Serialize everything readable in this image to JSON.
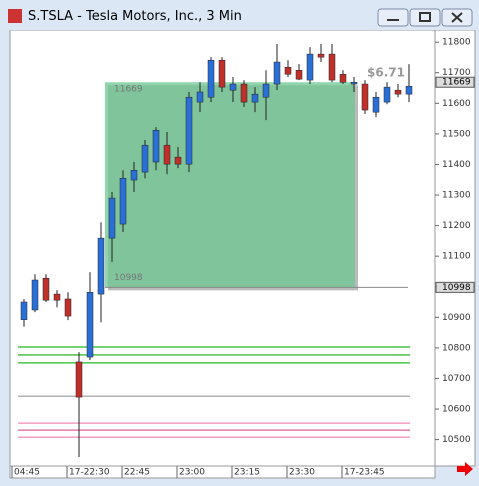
{
  "window": {
    "title": "S.TSLA - Tesla Motors, Inc., 3 Min"
  },
  "chart_data": {
    "type": "candlestick",
    "categories": [
      "04:45",
      null,
      null,
      null,
      null,
      "17-22:30",
      null,
      null,
      null,
      null,
      "22:45",
      null,
      null,
      null,
      null,
      "23:00",
      null,
      null,
      null,
      null,
      "23:15",
      null,
      null,
      null,
      null,
      "23:30",
      null,
      null,
      null,
      null,
      "17-23:45",
      null,
      null,
      null,
      null,
      null
    ],
    "open": [
      10892,
      10924,
      11028,
      10976,
      10960,
      10754,
      10770,
      10976,
      11159,
      11205,
      11349,
      11375,
      11408,
      11463,
      11424,
      11401,
      11604,
      11620,
      11741,
      11643,
      11663,
      11604,
      11620,
      11663,
      11718,
      11708,
      11676,
      11761,
      11761,
      11695,
      11663,
      11663,
      11571,
      11604,
      11643,
      11630
    ],
    "high": [
      10960,
      11041,
      11041,
      10989,
      10982,
      10786,
      11048,
      11211,
      11310,
      11381,
      11408,
      11480,
      11522,
      11506,
      11457,
      11637,
      11669,
      11751,
      11751,
      11686,
      11676,
      11653,
      11708,
      11794,
      11741,
      11728,
      11784,
      11794,
      11794,
      11708,
      11686,
      11676,
      11637,
      11669,
      11663,
      11728
    ],
    "low": [
      10869,
      10917,
      10950,
      10933,
      10891,
      10443,
      10760,
      10884,
      11081,
      11179,
      11310,
      11355,
      11381,
      11368,
      11388,
      11375,
      11571,
      11604,
      11637,
      11604,
      11588,
      11571,
      11545,
      11643,
      11686,
      11676,
      11663,
      11735,
      11669,
      11663,
      11637,
      11565,
      11555,
      11597,
      11620,
      11604
    ],
    "close": [
      10950,
      11022,
      10956,
      10956,
      10904,
      10639,
      10982,
      11159,
      11290,
      11355,
      11381,
      11463,
      11512,
      11401,
      11401,
      11620,
      11637,
      11741,
      11653,
      11663,
      11604,
      11630,
      11663,
      11735,
      11695,
      11679,
      11761,
      11751,
      11676,
      11669,
      11669,
      11578,
      11620,
      11653,
      11630,
      11656
    ],
    "up_color": "#2a6fd6",
    "down_color": "#c0302b",
    "ylim": [
      10430,
      11830
    ],
    "yticks": [
      10500,
      10600,
      10700,
      10800,
      10900,
      11000,
      11100,
      11200,
      11300,
      11400,
      11500,
      11600,
      11700,
      11800
    ],
    "zone": {
      "top": 11669,
      "bottom": 10998,
      "change": "$6.71",
      "color": "#6cc791"
    },
    "levels": [
      {
        "value": 10803,
        "color": "#22bb22"
      },
      {
        "value": 10777,
        "color": "#11aa11"
      },
      {
        "value": 10751,
        "color": "#22bb22"
      },
      {
        "value": 10642,
        "color": "#999999"
      },
      {
        "value": 10554,
        "color": "#f08cb4"
      },
      {
        "value": 10531,
        "color": "#e0609a"
      },
      {
        "value": 10508,
        "color": "#f08cb4"
      }
    ]
  }
}
